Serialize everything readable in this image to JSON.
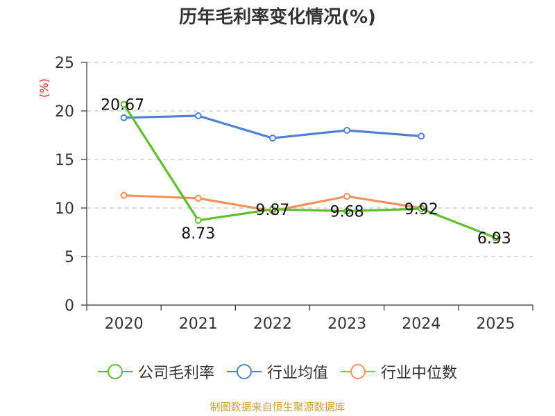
{
  "title": "历年毛利率变化情况(%)",
  "source": "制图数据来自恒生聚源数据库",
  "colors": {
    "company": "#5dbf2a",
    "avg": "#4f7fd6",
    "median": "#f5915c"
  },
  "chart_data": {
    "type": "line",
    "title": "历年毛利率变化情况(%)",
    "ylabel": "(%)",
    "xlabel": "",
    "categories": [
      "2020",
      "2021",
      "2022",
      "2023",
      "2024",
      "2025"
    ],
    "ylim": [
      0,
      25
    ],
    "yticks": [
      0,
      5,
      10,
      15,
      20,
      25
    ],
    "grid": true,
    "legend": "bottom",
    "series": [
      {
        "name": "公司毛利率",
        "values": [
          20.67,
          8.73,
          9.87,
          9.68,
          9.92,
          6.93
        ],
        "labels": [
          "20.67",
          "8.73",
          "9.87",
          "9.68",
          "9.92",
          "6.93"
        ]
      },
      {
        "name": "行业均值",
        "values": [
          19.3,
          19.5,
          17.2,
          18.0,
          17.4,
          null
        ]
      },
      {
        "name": "行业中位数",
        "values": [
          11.3,
          11.0,
          9.7,
          11.2,
          10.0,
          null
        ]
      }
    ]
  }
}
